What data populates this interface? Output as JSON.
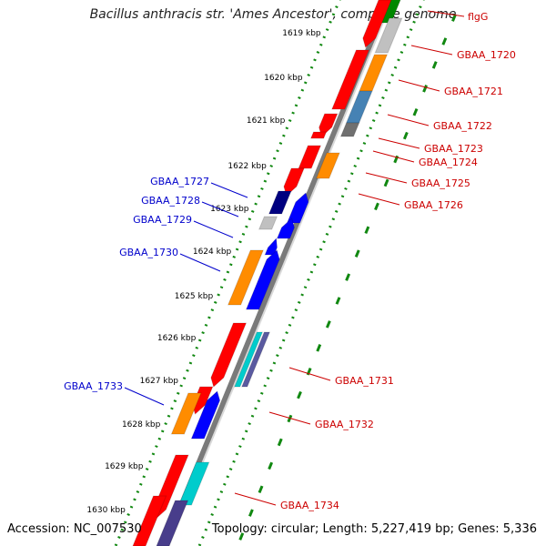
{
  "title": "Bacillus anthracis str. 'Ames Ancestor', complete genome",
  "accession": "Accession: NC_007530",
  "summary": "Topology: circular; Length: 5,227,419 bp; Genes: 5,336",
  "ticks": [
    "1619 kbp",
    "1620 kbp",
    "1621 kbp",
    "1622 kbp",
    "1623 kbp",
    "1624 kbp",
    "1625 kbp",
    "1626 kbp",
    "1627 kbp",
    "1628 kbp",
    "1629 kbp",
    "1630 kbp"
  ],
  "colors": {
    "forward_label": "#cc0000",
    "reverse_label": "#0000cc",
    "backbone": "#7a7a7a",
    "dots": "#118811",
    "red": "#ff0000",
    "orange": "#ff8c00",
    "blue": "#0000ff",
    "navy": "#000080",
    "gray": "#c0c0c0",
    "darkgray": "#707070",
    "steel": "#4682b4",
    "cyan": "#00cccc",
    "slate": "#483d8b",
    "green": "#008800",
    "purple": "#5a5aa0"
  },
  "forward_labels": [
    "flgG",
    "GBAA_1720",
    "GBAA_1721",
    "GBAA_1722",
    "GBAA_1723",
    "GBAA_1724",
    "GBAA_1725",
    "GBAA_1726",
    "GBAA_1731",
    "GBAA_1732",
    "GBAA_1734"
  ],
  "reverse_labels": [
    "GBAA_1727",
    "GBAA_1728",
    "GBAA_1729",
    "GBAA_1730",
    "GBAA_1733"
  ]
}
